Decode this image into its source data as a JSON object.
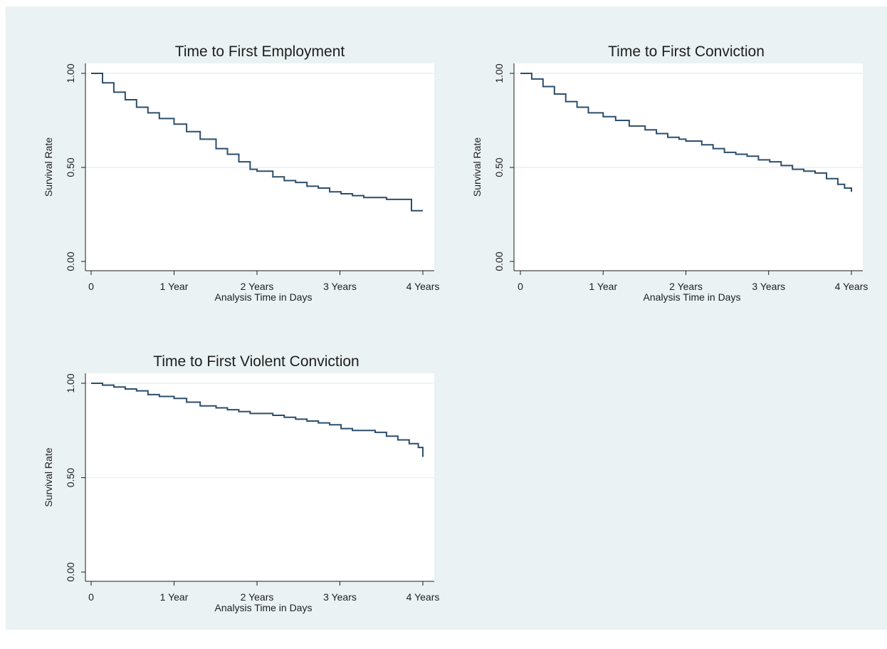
{
  "chart_data": [
    {
      "type": "line",
      "title": "Time to First Employment",
      "xlabel": "Analysis Time in Days",
      "ylabel": "Survival Rate",
      "x_ticks": [
        "0",
        "1 Year",
        "2 Years",
        "3 Years",
        "4 Years"
      ],
      "x_tick_days": [
        0,
        365,
        730,
        1095,
        1460
      ],
      "xlim": [
        0,
        1460
      ],
      "y_ticks": [
        "0.00",
        "0.50",
        "1.00"
      ],
      "y_tick_values": [
        0,
        0.5,
        1
      ],
      "ylim": [
        0,
        1
      ],
      "grid": true,
      "series": [
        {
          "color": "#2c4e6b",
          "x": [
            0,
            50,
            100,
            150,
            200,
            250,
            300,
            365,
            420,
            480,
            550,
            600,
            650,
            700,
            730,
            800,
            850,
            900,
            950,
            1000,
            1050,
            1100,
            1150,
            1200,
            1300,
            1400,
            1410,
            1460
          ],
          "y": [
            1.0,
            0.95,
            0.9,
            0.86,
            0.82,
            0.79,
            0.76,
            0.73,
            0.69,
            0.65,
            0.6,
            0.57,
            0.53,
            0.49,
            0.48,
            0.45,
            0.43,
            0.42,
            0.4,
            0.39,
            0.37,
            0.36,
            0.35,
            0.34,
            0.33,
            0.33,
            0.27,
            0.27
          ]
        }
      ]
    },
    {
      "type": "line",
      "title": "Time to First Conviction",
      "xlabel": "Analysis Time in Days",
      "ylabel": "Survival Rate",
      "x_ticks": [
        "0",
        "1 Year",
        "2 Years",
        "3 Years",
        "4 Years"
      ],
      "x_tick_days": [
        0,
        365,
        730,
        1095,
        1460
      ],
      "xlim": [
        0,
        1460
      ],
      "y_ticks": [
        "0.00",
        "0.50",
        "1.00"
      ],
      "y_tick_values": [
        0,
        0.5,
        1
      ],
      "ylim": [
        0,
        1
      ],
      "grid": true,
      "series": [
        {
          "color": "#2c4e6b",
          "x": [
            0,
            50,
            100,
            150,
            200,
            250,
            300,
            365,
            420,
            480,
            550,
            600,
            650,
            700,
            730,
            800,
            850,
            900,
            950,
            1000,
            1050,
            1100,
            1150,
            1200,
            1250,
            1300,
            1350,
            1400,
            1430,
            1460
          ],
          "y": [
            1.0,
            0.97,
            0.93,
            0.89,
            0.85,
            0.82,
            0.79,
            0.77,
            0.75,
            0.72,
            0.7,
            0.68,
            0.66,
            0.65,
            0.64,
            0.62,
            0.6,
            0.58,
            0.57,
            0.56,
            0.54,
            0.53,
            0.51,
            0.49,
            0.48,
            0.47,
            0.44,
            0.41,
            0.39,
            0.37
          ]
        }
      ]
    },
    {
      "type": "line",
      "title": "Time to First Violent Conviction",
      "xlabel": "Analysis Time in Days",
      "ylabel": "Survival Rate",
      "x_ticks": [
        "0",
        "1 Year",
        "2 Years",
        "3 Years",
        "4 Years"
      ],
      "x_tick_days": [
        0,
        365,
        730,
        1095,
        1460
      ],
      "xlim": [
        0,
        1460
      ],
      "y_ticks": [
        "0.00",
        "0.50",
        "1.00"
      ],
      "y_tick_values": [
        0,
        0.5,
        1
      ],
      "ylim": [
        0,
        1
      ],
      "grid": true,
      "series": [
        {
          "color": "#2c4e6b",
          "x": [
            0,
            50,
            100,
            150,
            200,
            250,
            300,
            365,
            420,
            480,
            550,
            600,
            650,
            700,
            730,
            800,
            850,
            900,
            950,
            1000,
            1050,
            1100,
            1150,
            1200,
            1250,
            1300,
            1350,
            1400,
            1440,
            1460
          ],
          "y": [
            1.0,
            0.99,
            0.98,
            0.97,
            0.96,
            0.94,
            0.93,
            0.92,
            0.9,
            0.88,
            0.87,
            0.86,
            0.85,
            0.84,
            0.84,
            0.83,
            0.82,
            0.81,
            0.8,
            0.79,
            0.78,
            0.76,
            0.75,
            0.75,
            0.74,
            0.72,
            0.7,
            0.68,
            0.66,
            0.61
          ]
        }
      ]
    }
  ]
}
